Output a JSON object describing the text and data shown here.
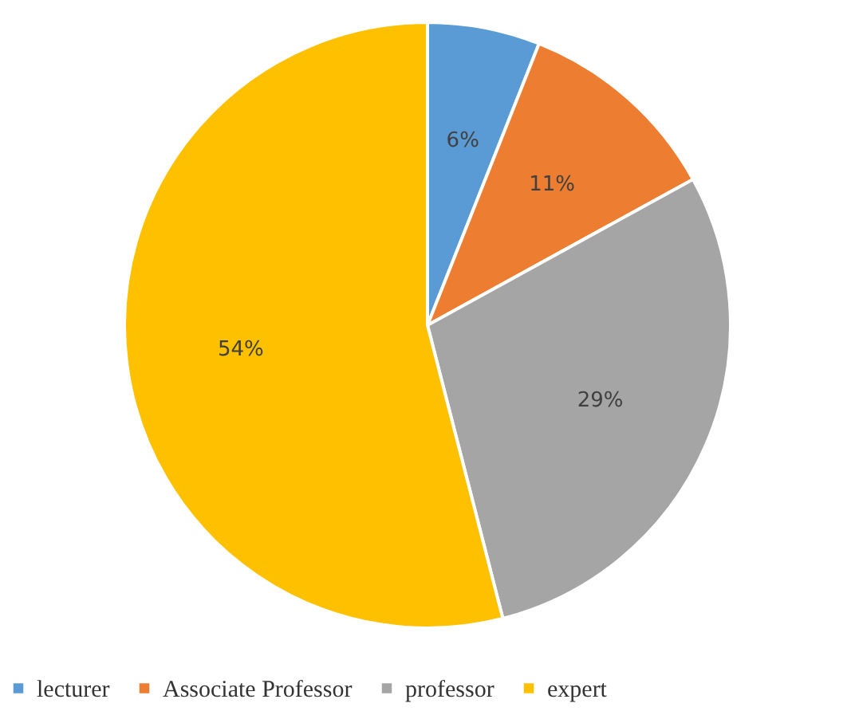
{
  "chart_data": {
    "type": "pie",
    "categories": [
      "lecturer",
      "Associate Professor",
      "professor",
      "expert"
    ],
    "values": [
      6,
      11,
      29,
      54
    ],
    "colors": [
      "#5b9bd5",
      "#ed7d31",
      "#a5a5a5",
      "#ffc000"
    ],
    "value_labels": [
      "6%",
      "11%",
      "29%",
      "54%"
    ],
    "legend": "bottom"
  }
}
